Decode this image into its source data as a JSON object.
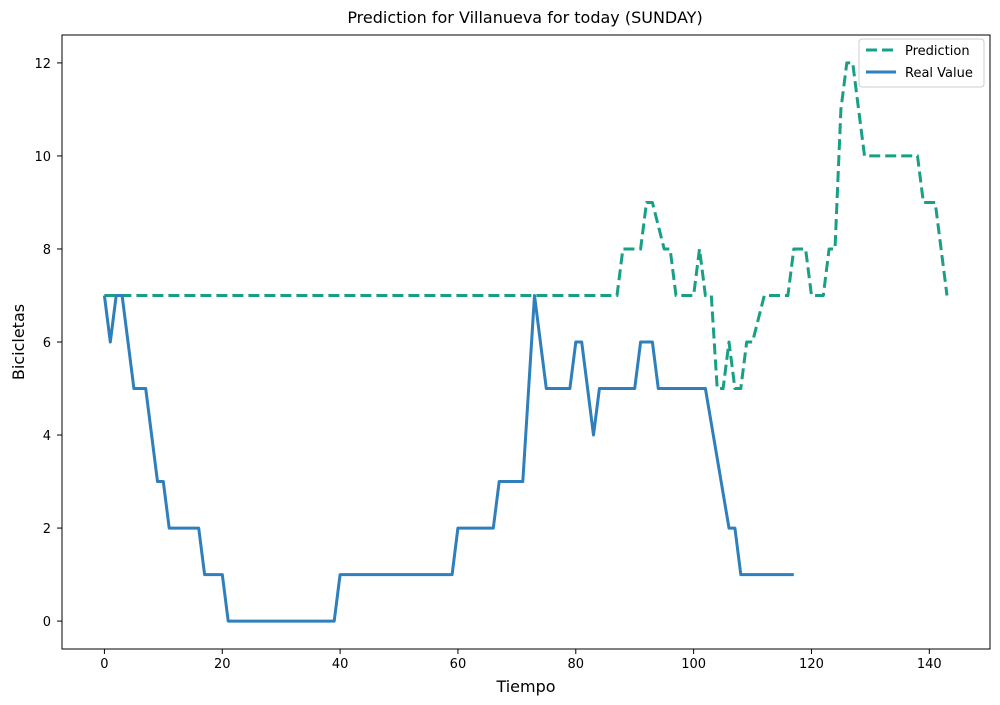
{
  "chart_data": {
    "type": "line",
    "title": "Prediction for Villanueva for today (SUNDAY)",
    "xlabel": "Tiempo",
    "ylabel": "Bicicletas",
    "xlim": [
      -7.2,
      150.3
    ],
    "ylim": [
      -0.6,
      12.6
    ],
    "xticks": [
      0,
      20,
      40,
      60,
      80,
      100,
      120,
      140
    ],
    "yticks": [
      0,
      2,
      4,
      6,
      8,
      10,
      12
    ],
    "grid": false,
    "legend_position": "top-right",
    "series": [
      {
        "name": "Prediction",
        "color": "#17a085",
        "style": "dashed",
        "x": [
          0,
          87,
          88,
          90,
          91,
          92,
          93,
          95,
          96,
          97,
          100,
          101,
          102,
          103,
          104,
          105,
          106,
          107,
          108,
          109,
          110,
          112,
          113,
          116,
          117,
          119,
          120,
          122,
          123,
          124,
          125,
          126,
          127,
          128,
          129,
          130,
          137,
          138,
          139,
          141,
          143
        ],
        "values": [
          7,
          7,
          8,
          8,
          8,
          9,
          9,
          8,
          8,
          7,
          7,
          8,
          7,
          7,
          5,
          5,
          6,
          5,
          5,
          6,
          6,
          7,
          7,
          7,
          8,
          8,
          7,
          7,
          8,
          8,
          11,
          12,
          12,
          11,
          10,
          10,
          10,
          10,
          9,
          9,
          7
        ]
      },
      {
        "name": "Real Value",
        "color": "#2e7fbb",
        "style": "solid",
        "x": [
          0,
          1,
          2,
          3,
          5,
          7,
          9,
          10,
          11,
          16,
          17,
          20,
          21,
          39,
          40,
          59,
          60,
          66,
          67,
          71,
          73,
          75,
          79,
          80,
          81,
          83,
          84,
          90,
          91,
          93,
          94,
          102,
          104,
          106,
          107,
          108,
          117
        ],
        "values": [
          7,
          6,
          7,
          7,
          5,
          5,
          3,
          3,
          2,
          2,
          1,
          1,
          0,
          0,
          1,
          1,
          2,
          2,
          3,
          3,
          7,
          5,
          5,
          6,
          6,
          4,
          5,
          5,
          6,
          6,
          5,
          5,
          3.5,
          2,
          2,
          1,
          1
        ]
      }
    ]
  }
}
